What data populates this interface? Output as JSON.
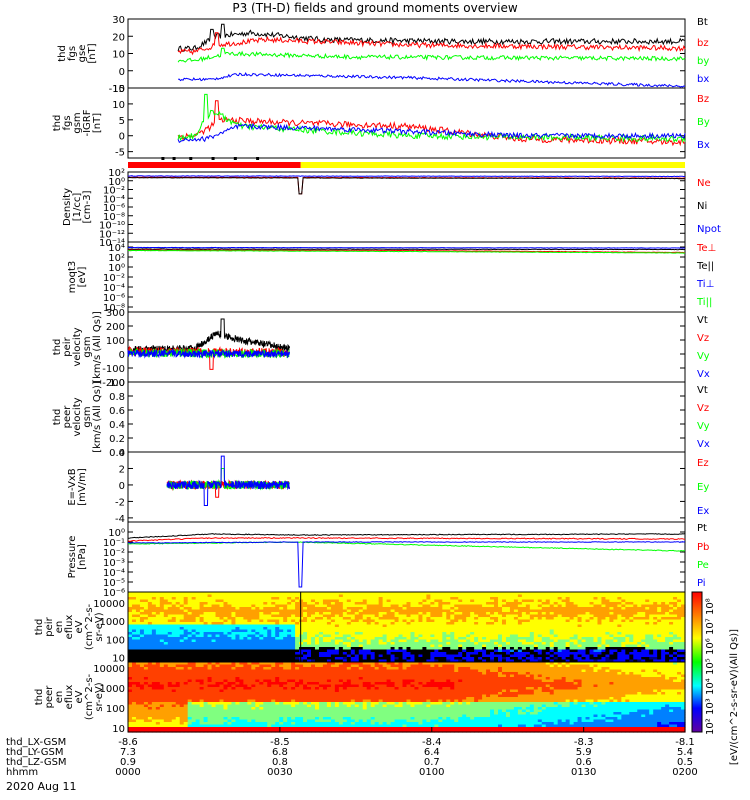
{
  "title": "P3 (TH-D) fields and ground moments overview",
  "time_axis": {
    "tick_rows": [
      {
        "label": "thd_LX-GSM",
        "values": [
          "-8.6",
          "-8.5",
          "-8.4",
          "-8.3",
          "-8.1"
        ]
      },
      {
        "label": "thd_LY-GSM",
        "values": [
          "7.3",
          "6.8",
          "6.4",
          "5.9",
          "5.4"
        ]
      },
      {
        "label": "thd_LZ-GSM",
        "values": [
          "0.9",
          "0.8",
          "0.7",
          "0.6",
          "0.5"
        ]
      },
      {
        "label": "hhmm",
        "values": [
          "0000",
          "0030",
          "0100",
          "0130",
          "0200"
        ]
      }
    ],
    "date": "2020 Aug 11",
    "hhmm_range": [
      "0000",
      "0200"
    ]
  },
  "colors": {
    "black": "#000000",
    "red": "#ff0000",
    "green": "#00ff00",
    "blue": "#0000ff",
    "yellow": "#ffff00"
  },
  "mode_bar": {
    "red_until_fraction": 0.31,
    "colors": [
      "#ff0000",
      "#ffff00"
    ]
  },
  "chart_data": [
    {
      "id": "p1",
      "type": "line",
      "ylabel": [
        "thd",
        "fgs",
        "gse",
        "[nT]"
      ],
      "ylim": [
        -10,
        30
      ],
      "log": false,
      "ticks": [
        "30",
        "20",
        "10",
        "0",
        "-10"
      ],
      "tickvals": [
        30,
        20,
        10,
        0,
        -10
      ],
      "series": [
        {
          "name": "Bt",
          "color": "#000000",
          "active": [
            0.09,
            1.0
          ],
          "base": [
            [
              0,
              12
            ],
            [
              0.12,
              13
            ],
            [
              0.16,
              20
            ],
            [
              0.22,
              22
            ],
            [
              0.35,
              18
            ],
            [
              0.6,
              17
            ],
            [
              1,
              17
            ]
          ],
          "noise": 1.6,
          "spikes": [
            [
              0.17,
              27
            ],
            [
              0.15,
              24
            ]
          ]
        },
        {
          "name": "bz",
          "color": "#ff0000",
          "active": [
            0.09,
            1.0
          ],
          "base": [
            [
              0,
              11
            ],
            [
              0.12,
              11
            ],
            [
              0.16,
              15
            ],
            [
              0.25,
              18
            ],
            [
              0.5,
              15
            ],
            [
              1,
              13
            ]
          ],
          "noise": 1.5,
          "spikes": [
            [
              0.16,
              22
            ]
          ]
        },
        {
          "name": "by",
          "color": "#00ff00",
          "active": [
            0.09,
            1.0
          ],
          "base": [
            [
              0,
              6
            ],
            [
              0.12,
              6
            ],
            [
              0.18,
              10
            ],
            [
              0.4,
              8
            ],
            [
              1,
              7
            ]
          ],
          "noise": 1.2,
          "spikes": [
            [
              0.17,
              13
            ]
          ]
        },
        {
          "name": "bx",
          "color": "#0000ff",
          "active": [
            0.09,
            1.0
          ],
          "base": [
            [
              0,
              -5
            ],
            [
              0.15,
              -5
            ],
            [
              0.2,
              -2
            ],
            [
              0.5,
              -4
            ],
            [
              1,
              -9
            ]
          ],
          "noise": 0.8,
          "spikes": []
        }
      ]
    },
    {
      "id": "p2",
      "type": "line",
      "ylabel": [
        "thd",
        "fgs",
        "gsm",
        "-IGRF",
        "[nT]"
      ],
      "ylim": [
        -7,
        15
      ],
      "log": false,
      "ticks": [
        "15",
        "10",
        "5",
        "0",
        "-5"
      ],
      "tickvals": [
        15,
        10,
        5,
        0,
        -5
      ],
      "series": [
        {
          "name": "Bz",
          "color": "#ff0000",
          "active": [
            0.09,
            1.0
          ],
          "base": [
            [
              0,
              -1
            ],
            [
              0.12,
              0
            ],
            [
              0.17,
              5
            ],
            [
              0.3,
              4
            ],
            [
              0.5,
              3
            ],
            [
              0.7,
              -1
            ],
            [
              1,
              -2
            ]
          ],
          "noise": 1.0,
          "spikes": [
            [
              0.16,
              11
            ]
          ]
        },
        {
          "name": "By",
          "color": "#00ff00",
          "active": [
            0.09,
            1.0
          ],
          "base": [
            [
              0,
              -2
            ],
            [
              0.12,
              0
            ],
            [
              0.15,
              8
            ],
            [
              0.2,
              3
            ],
            [
              0.5,
              0
            ],
            [
              1,
              -1
            ]
          ],
          "noise": 1.0,
          "spikes": [
            [
              0.14,
              13
            ]
          ]
        },
        {
          "name": "Bx",
          "color": "#0000ff",
          "active": [
            0.09,
            1.0
          ],
          "base": [
            [
              0,
              -2
            ],
            [
              0.14,
              -1
            ],
            [
              0.2,
              3
            ],
            [
              0.4,
              2
            ],
            [
              0.7,
              0
            ],
            [
              1,
              0
            ]
          ],
          "noise": 0.8,
          "spikes": []
        }
      ]
    },
    {
      "id": "p3",
      "type": "line",
      "ylabel": [
        "Density",
        "[1/cc]",
        "[cm-3]"
      ],
      "ylim": [
        -14,
        2
      ],
      "log": true,
      "ticks": [
        "10²",
        "10⁰",
        "10⁻²",
        "10⁻⁴",
        "10⁻⁶",
        "10⁻⁸",
        "10⁻¹⁰",
        "10⁻¹²",
        "10⁻¹⁴"
      ],
      "tickvals": [
        2,
        0,
        -2,
        -4,
        -6,
        -8,
        -10,
        -12,
        -14
      ],
      "series": [
        {
          "name": "Ne",
          "color": "#ff0000",
          "active": [
            0,
            1
          ],
          "base": [
            [
              0,
              0.8
            ],
            [
              1,
              0.6
            ]
          ],
          "noise": 0.05,
          "spikes": [
            [
              0.31,
              -3
            ]
          ]
        },
        {
          "name": "Ni",
          "color": "#000000",
          "active": [
            0,
            1
          ],
          "base": [
            [
              0,
              0.7
            ],
            [
              1,
              0.5
            ]
          ],
          "noise": 0.05,
          "spikes": [
            [
              0.31,
              -3
            ]
          ]
        },
        {
          "name": "Npot",
          "color": "#0000ff",
          "active": [
            0,
            1
          ],
          "base": [
            [
              0,
              1.1
            ],
            [
              1,
              1.0
            ]
          ],
          "noise": 0.05,
          "spikes": []
        }
      ]
    },
    {
      "id": "p4",
      "type": "line",
      "ylabel": [
        "moqt3",
        "[eV]"
      ],
      "ylim": [
        -9,
        5
      ],
      "log": true,
      "ticks": [
        "10⁴",
        "10²",
        "10⁰",
        "10⁻²",
        "10⁻⁴",
        "10⁻⁶",
        "10⁻⁸"
      ],
      "tickvals": [
        4,
        2,
        0,
        -2,
        -4,
        -6,
        -8
      ],
      "series": [
        {
          "name": "Te⊥",
          "color": "#ff0000",
          "active": [
            0,
            1
          ],
          "base": [
            [
              0,
              3.4
            ],
            [
              0.5,
              3.3
            ],
            [
              1,
              2.9
            ]
          ],
          "noise": 0.04,
          "spikes": []
        },
        {
          "name": "Te||",
          "color": "#000000",
          "active": [
            0,
            1
          ],
          "base": [
            [
              0,
              3.6
            ],
            [
              1,
              3.5
            ]
          ],
          "noise": 0.04,
          "spikes": []
        },
        {
          "name": "Ti⊥",
          "color": "#0000ff",
          "active": [
            0,
            1
          ],
          "base": [
            [
              0,
              3.9
            ],
            [
              1,
              3.8
            ]
          ],
          "noise": 0.03,
          "spikes": []
        },
        {
          "name": "Ti||",
          "color": "#00ff00",
          "active": [
            0,
            1
          ],
          "base": [
            [
              0,
              3.3
            ],
            [
              0.5,
              3.1
            ],
            [
              1,
              2.8
            ]
          ],
          "noise": 0.04,
          "spikes": []
        }
      ]
    },
    {
      "id": "p5",
      "type": "line",
      "ylabel": [
        "thd",
        "peir",
        "velocity",
        "gsm",
        "[km/s (All Qs)]"
      ],
      "ylim": [
        -200,
        300
      ],
      "log": false,
      "ticks": [
        "300",
        "200",
        "100",
        "0",
        "-100",
        "-200"
      ],
      "tickvals": [
        300,
        200,
        100,
        0,
        -100,
        -200
      ],
      "series": [
        {
          "name": "Vt",
          "color": "#000000",
          "active": [
            0,
            0.29
          ],
          "base": [
            [
              0,
              30
            ],
            [
              0.12,
              40
            ],
            [
              0.16,
              150
            ],
            [
              0.2,
              100
            ],
            [
              0.29,
              40
            ]
          ],
          "noise": 25,
          "spikes": [
            [
              0.17,
              250
            ]
          ]
        },
        {
          "name": "Vz",
          "color": "#ff0000",
          "active": [
            0,
            0.29
          ],
          "base": [
            [
              0,
              20
            ],
            [
              0.29,
              10
            ]
          ],
          "noise": 30,
          "spikes": [
            [
              0.15,
              -110
            ]
          ]
        },
        {
          "name": "Vy",
          "color": "#00ff00",
          "active": [
            0,
            0.29
          ],
          "base": [
            [
              0,
              10
            ],
            [
              0.29,
              0
            ]
          ],
          "noise": 30,
          "spikes": []
        },
        {
          "name": "Vx",
          "color": "#0000ff",
          "active": [
            0,
            0.29
          ],
          "base": [
            [
              0,
              5
            ],
            [
              0.29,
              0
            ]
          ],
          "noise": 25,
          "spikes": []
        }
      ]
    },
    {
      "id": "p6",
      "type": "line",
      "ylabel": [
        "thd",
        "peer",
        "velocity",
        "gsm",
        "[km/s (All Qs)]"
      ],
      "ylim": [
        0,
        1
      ],
      "log": false,
      "ticks": [
        "1.0",
        "0.8",
        "0.6",
        "0.4",
        "0.2",
        "0.0"
      ],
      "tickvals": [
        1,
        0.8,
        0.6,
        0.4,
        0.2,
        0
      ],
      "series": [
        {
          "name": "Vt",
          "color": "#000000",
          "active": [
            0,
            0
          ],
          "base": [],
          "noise": 0,
          "spikes": []
        },
        {
          "name": "Vz",
          "color": "#ff0000",
          "active": [
            0,
            0
          ],
          "base": [],
          "noise": 0,
          "spikes": []
        },
        {
          "name": "Vy",
          "color": "#00ff00",
          "active": [
            0,
            0
          ],
          "base": [],
          "noise": 0,
          "spikes": []
        },
        {
          "name": "Vx",
          "color": "#0000ff",
          "active": [
            0,
            0
          ],
          "base": [],
          "noise": 0,
          "spikes": []
        }
      ]
    },
    {
      "id": "p7",
      "type": "line",
      "ylabel": [
        "E=-VxB",
        "[mV/m]"
      ],
      "ylim": [
        -4.5,
        4
      ],
      "log": false,
      "ticks": [
        "4",
        "2",
        "0",
        "-2",
        "-4"
      ],
      "tickvals": [
        4,
        2,
        0,
        -2,
        -4
      ],
      "series": [
        {
          "name": "Ez",
          "color": "#ff0000",
          "active": [
            0.07,
            0.29
          ],
          "base": [
            [
              0,
              0
            ],
            [
              1,
              0
            ]
          ],
          "noise": 0.5,
          "spikes": [
            [
              0.16,
              -1.5
            ]
          ]
        },
        {
          "name": "Ey",
          "color": "#00ff00",
          "active": [
            0.07,
            0.29
          ],
          "base": [
            [
              0,
              0
            ],
            [
              1,
              0
            ]
          ],
          "noise": 0.5,
          "spikes": [
            [
              0.17,
              2
            ]
          ]
        },
        {
          "name": "Ex",
          "color": "#0000ff",
          "active": [
            0.07,
            0.29
          ],
          "base": [
            [
              0,
              0
            ],
            [
              1,
              0
            ]
          ],
          "noise": 0.5,
          "spikes": [
            [
              0.14,
              -2.5
            ],
            [
              0.17,
              3.5
            ]
          ]
        }
      ]
    },
    {
      "id": "p8",
      "type": "line",
      "ylabel": [
        "Pressure",
        "[nPa]"
      ],
      "ylim": [
        -6,
        1
      ],
      "log": true,
      "ticks": [
        "10⁰",
        "10⁻¹",
        "10⁻²",
        "10⁻³",
        "10⁻⁴",
        "10⁻⁵",
        "10⁻⁶"
      ],
      "tickvals": [
        0,
        -1,
        -2,
        -3,
        -4,
        -5,
        -6
      ],
      "series": [
        {
          "name": "Pt",
          "color": "#000000",
          "active": [
            0,
            1
          ],
          "base": [
            [
              0,
              -0.6
            ],
            [
              0.15,
              -0.2
            ],
            [
              0.3,
              -0.3
            ],
            [
              1,
              -0.2
            ]
          ],
          "noise": 0.04,
          "spikes": []
        },
        {
          "name": "Pb",
          "color": "#ff0000",
          "active": [
            0,
            1
          ],
          "base": [
            [
              0,
              -0.9
            ],
            [
              0.15,
              -0.6
            ],
            [
              0.3,
              -0.6
            ],
            [
              1,
              -0.7
            ]
          ],
          "noise": 0.05,
          "spikes": []
        },
        {
          "name": "Pe",
          "color": "#00ff00",
          "active": [
            0,
            1
          ],
          "base": [
            [
              0,
              -1.2
            ],
            [
              0.3,
              -1.0
            ],
            [
              0.6,
              -1.4
            ],
            [
              1,
              -1.9
            ]
          ],
          "noise": 0.04,
          "spikes": []
        },
        {
          "name": "Pi",
          "color": "#0000ff",
          "active": [
            0,
            1
          ],
          "base": [
            [
              0,
              -1.1
            ],
            [
              0.3,
              -1.0
            ],
            [
              1,
              -1.0
            ]
          ],
          "noise": 0.03,
          "spikes": [
            [
              0.31,
              -5.5
            ]
          ]
        }
      ]
    },
    {
      "id": "s1",
      "type": "heatmap",
      "ylabel": [
        "thd",
        "peir",
        "en",
        "eflux",
        "eV",
        "(cm^2-s-",
        "sr-eV)"
      ],
      "ticks": [
        "10000",
        "1000",
        "100",
        "10"
      ],
      "tickvals": [
        4,
        3,
        2,
        1
      ],
      "ylim": [
        0.75,
        4.6
      ]
    },
    {
      "id": "s2",
      "type": "heatmap",
      "ylabel": [
        "thd",
        "peer",
        "en",
        "eflux",
        "eV",
        "(cm^2-s-",
        "sr-eV)"
      ],
      "ticks": [
        "10000",
        "1000",
        "100",
        "10"
      ],
      "tickvals": [
        4,
        3,
        2,
        1
      ],
      "ylim": [
        0.8,
        4.3
      ]
    }
  ],
  "colorbar": {
    "label": "[eV/(cm^2-s-sr-eV)(All Qs)]",
    "ticks": [
      "10⁸",
      "10⁷",
      "10⁶",
      "10⁵",
      "10⁴",
      "10³",
      "10²"
    ]
  }
}
